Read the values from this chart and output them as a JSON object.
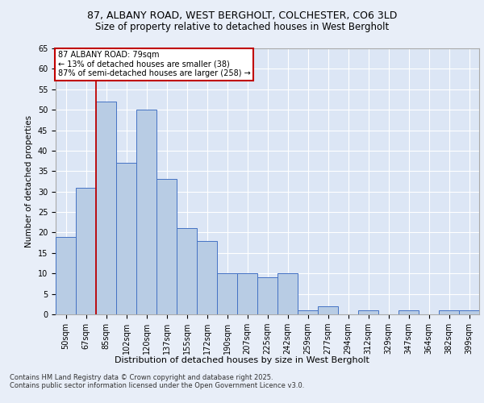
{
  "title_line1": "87, ALBANY ROAD, WEST BERGHOLT, COLCHESTER, CO6 3LD",
  "title_line2": "Size of property relative to detached houses in West Bergholt",
  "xlabel": "Distribution of detached houses by size in West Bergholt",
  "ylabel": "Number of detached properties",
  "categories": [
    "50sqm",
    "67sqm",
    "85sqm",
    "102sqm",
    "120sqm",
    "137sqm",
    "155sqm",
    "172sqm",
    "190sqm",
    "207sqm",
    "225sqm",
    "242sqm",
    "259sqm",
    "277sqm",
    "294sqm",
    "312sqm",
    "329sqm",
    "347sqm",
    "364sqm",
    "382sqm",
    "399sqm"
  ],
  "values": [
    19,
    31,
    52,
    37,
    50,
    33,
    21,
    18,
    10,
    10,
    9,
    10,
    1,
    2,
    0,
    1,
    0,
    1,
    0,
    1,
    1
  ],
  "bar_color": "#b8cce4",
  "bar_edge_color": "#4472c4",
  "marker_line_color": "#c00000",
  "ylim": [
    0,
    65
  ],
  "yticks": [
    0,
    5,
    10,
    15,
    20,
    25,
    30,
    35,
    40,
    45,
    50,
    55,
    60,
    65
  ],
  "annotation_text": "87 ALBANY ROAD: 79sqm\n← 13% of detached houses are smaller (38)\n87% of semi-detached houses are larger (258) →",
  "annotation_box_color": "#c00000",
  "footnote": "Contains HM Land Registry data © Crown copyright and database right 2025.\nContains public sector information licensed under the Open Government Licence v3.0.",
  "fig_bg_color": "#e8eef8",
  "plot_bg_color": "#dce6f5",
  "grid_color": "#ffffff",
  "title1_fontsize": 9,
  "title2_fontsize": 8.5,
  "ylabel_fontsize": 7.5,
  "xlabel_fontsize": 8,
  "tick_fontsize": 7,
  "annot_fontsize": 7,
  "footnote_fontsize": 6
}
